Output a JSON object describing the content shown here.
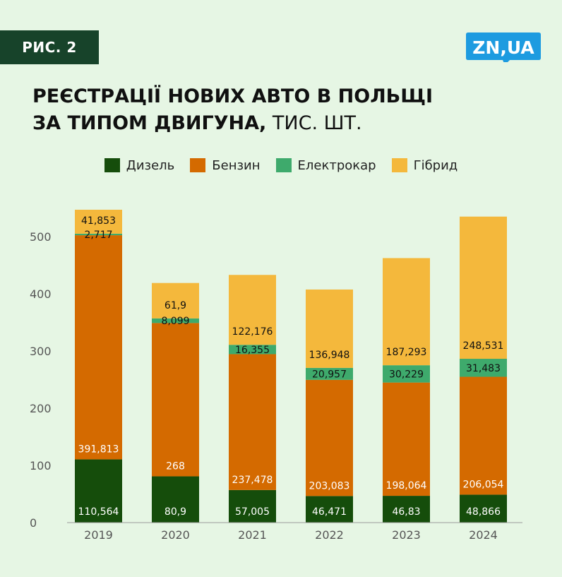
{
  "header": {
    "figure_label": "РИС. 2",
    "logo_text": "ZN,UA",
    "title_bold_line1": "РЕЄСТРАЦІЇ НОВИХ АВТО В ПОЛЬЩІ",
    "title_bold_line2": "ЗА ТИПОМ ДВИГУНА,",
    "title_unit": " ТИС. ШТ."
  },
  "colors": {
    "background": "#e6f6e4",
    "diesel": "#154d0b",
    "petrol": "#d46a00",
    "electric": "#3eaa6c",
    "hybrid": "#f4b83c",
    "badge": "#17432a",
    "logo": "#1d9be0"
  },
  "chart_data": {
    "type": "bar",
    "stacked": true,
    "categories": [
      "2019",
      "2020",
      "2021",
      "2022",
      "2023",
      "2024"
    ],
    "series": [
      {
        "name": "Дизель",
        "color": "#154d0b",
        "label_color": "#ffffff",
        "values": [
          110.564,
          80.9,
          57.005,
          46.471,
          46.83,
          48.866
        ],
        "labels": [
          "110,564",
          "80,9",
          "57,005",
          "46,471",
          "46,83",
          "48,866"
        ]
      },
      {
        "name": "Бензин",
        "color": "#d46a00",
        "label_color": "#ffffff",
        "values": [
          391.813,
          268,
          237.478,
          203.083,
          198.064,
          206.054
        ],
        "labels": [
          "391,813",
          "268",
          "237,478",
          "203,083",
          "198,064",
          "206,054"
        ]
      },
      {
        "name": "Електрокар",
        "color": "#3eaa6c",
        "label_color": "#111111",
        "values": [
          2.717,
          8.099,
          16.355,
          20.957,
          30.229,
          31.483
        ],
        "labels": [
          "2,717",
          "8,099",
          "16,355",
          "20,957",
          "30,229",
          "31,483"
        ]
      },
      {
        "name": "Гібрид",
        "color": "#f4b83c",
        "label_color": "#111111",
        "values": [
          41.853,
          61.9,
          122.176,
          136.948,
          187.293,
          248.531
        ],
        "labels": [
          "41,853",
          "61,9",
          "122,176",
          "136,948",
          "187,293",
          "248,531"
        ]
      }
    ],
    "ylim": [
      0,
      550
    ],
    "yticks": [
      0,
      100,
      200,
      300,
      400,
      500
    ],
    "ytick_labels": [
      "0",
      "100",
      "200",
      "300",
      "400",
      "500"
    ],
    "grid": false,
    "legend_position": "top"
  }
}
